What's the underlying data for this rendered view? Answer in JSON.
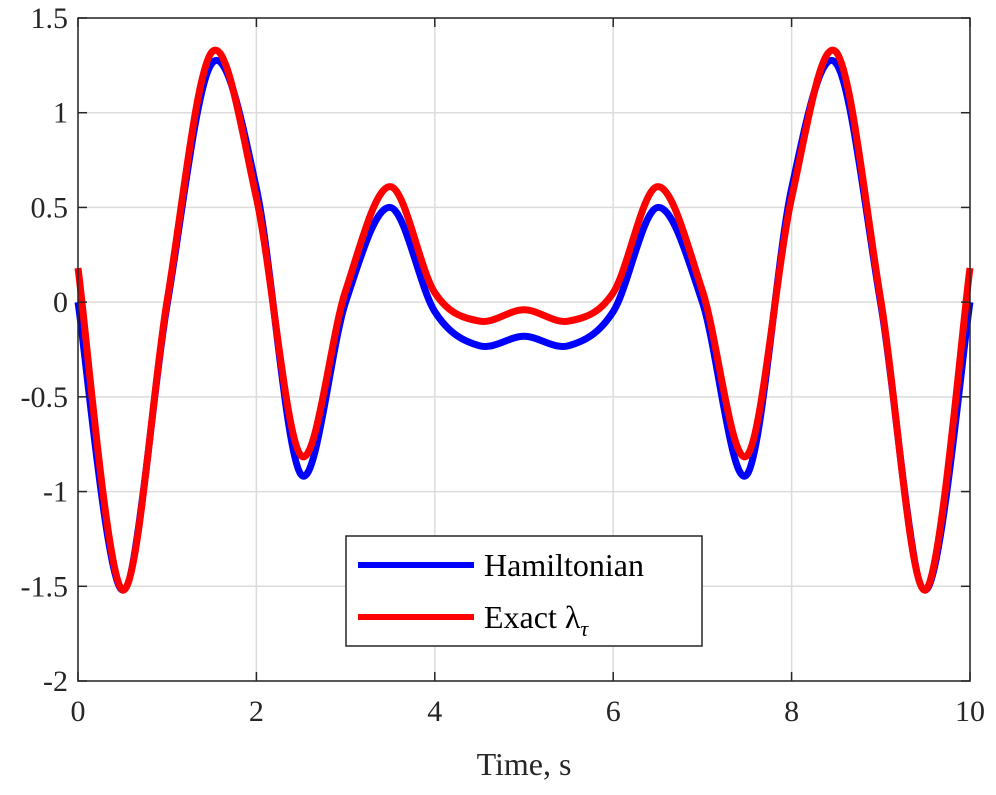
{
  "chart_data": {
    "type": "line",
    "title": "",
    "xlabel": "Time, s",
    "ylabel": "",
    "xlim": [
      0,
      10
    ],
    "ylim": [
      -2,
      1.5
    ],
    "grid": true,
    "legend_position": "bottom-center",
    "x_ticks": [
      0,
      2,
      4,
      6,
      8,
      10
    ],
    "x_tick_labels": [
      "0",
      "2",
      "4",
      "6",
      "8",
      "10"
    ],
    "y_ticks": [
      -2,
      -1.5,
      -1,
      -0.5,
      0,
      0.5,
      1,
      1.5
    ],
    "y_tick_labels": [
      "-2",
      "-1.5",
      "-1",
      "-0.5",
      "0",
      "0.5",
      "1",
      "1.5"
    ],
    "x": [
      0,
      0.5,
      1,
      1.5,
      2,
      2.5,
      3,
      3.5,
      4,
      4.5,
      5,
      5.5,
      6,
      6.5,
      7,
      7.5,
      8,
      8.5,
      9,
      9.5,
      10
    ],
    "series": [
      {
        "name": "Hamiltonian",
        "color": "#0000ff",
        "values": [
          0,
          -1.52,
          -0.01,
          1.26,
          0.6,
          -0.91,
          0.0,
          0.5,
          -0.05,
          -0.23,
          -0.18,
          -0.23,
          -0.05,
          0.5,
          0.0,
          -0.91,
          0.6,
          1.26,
          -0.01,
          -1.52,
          0
        ]
      },
      {
        "name": "Exact λ_τ",
        "color": "#ff0000",
        "values": [
          0.18,
          -1.52,
          0.01,
          1.32,
          0.55,
          -0.81,
          0.06,
          0.61,
          0.05,
          -0.1,
          -0.04,
          -0.1,
          0.05,
          0.61,
          0.06,
          -0.81,
          0.55,
          1.32,
          0.01,
          -1.52,
          0.18
        ]
      }
    ]
  },
  "legend": {
    "items": [
      {
        "label": "Hamiltonian",
        "color": "#0000ff"
      },
      {
        "label": "Exact λ",
        "subscript": "τ",
        "color": "#ff0000"
      }
    ]
  }
}
